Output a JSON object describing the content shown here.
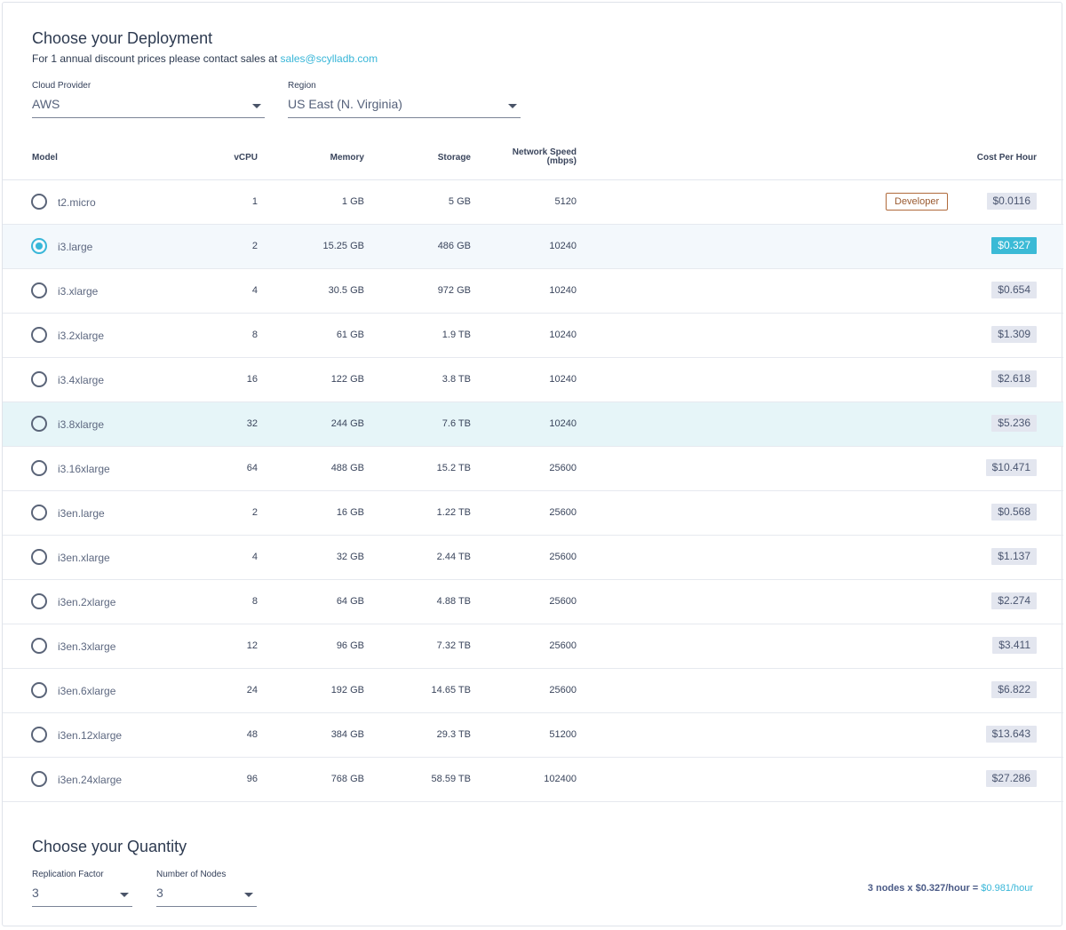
{
  "deployment": {
    "title": "Choose your Deployment",
    "subtitle": "For 1 annual discount prices please contact sales at",
    "sales_email": "sales@scylladb.com",
    "cloud_provider": {
      "label": "Cloud Provider",
      "value": "AWS"
    },
    "region": {
      "label": "Region",
      "value": "US East (N. Virginia)"
    }
  },
  "table": {
    "headers": {
      "model": "Model",
      "vcpu": "vCPU",
      "memory": "Memory",
      "storage": "Storage",
      "network_line1": "Network Speed",
      "network_line2": "(mbps)",
      "cost": "Cost Per Hour"
    },
    "rows": [
      {
        "model": "t2.micro",
        "vcpu": "1",
        "memory": "1 GB",
        "storage": "5 GB",
        "network": "5120",
        "price": "$0.0116",
        "badge": "Developer"
      },
      {
        "model": "i3.large",
        "vcpu": "2",
        "memory": "15.25 GB",
        "storage": "486 GB",
        "network": "10240",
        "price": "$0.327",
        "selected": true
      },
      {
        "model": "i3.xlarge",
        "vcpu": "4",
        "memory": "30.5 GB",
        "storage": "972 GB",
        "network": "10240",
        "price": "$0.654"
      },
      {
        "model": "i3.2xlarge",
        "vcpu": "8",
        "memory": "61 GB",
        "storage": "1.9 TB",
        "network": "10240",
        "price": "$1.309"
      },
      {
        "model": "i3.4xlarge",
        "vcpu": "16",
        "memory": "122 GB",
        "storage": "3.8 TB",
        "network": "10240",
        "price": "$2.618"
      },
      {
        "model": "i3.8xlarge",
        "vcpu": "32",
        "memory": "244 GB",
        "storage": "7.6 TB",
        "network": "10240",
        "price": "$5.236",
        "hover": true
      },
      {
        "model": "i3.16xlarge",
        "vcpu": "64",
        "memory": "488 GB",
        "storage": "15.2 TB",
        "network": "25600",
        "price": "$10.471"
      },
      {
        "model": "i3en.large",
        "vcpu": "2",
        "memory": "16 GB",
        "storage": "1.22 TB",
        "network": "25600",
        "price": "$0.568"
      },
      {
        "model": "i3en.xlarge",
        "vcpu": "4",
        "memory": "32 GB",
        "storage": "2.44 TB",
        "network": "25600",
        "price": "$1.137"
      },
      {
        "model": "i3en.2xlarge",
        "vcpu": "8",
        "memory": "64 GB",
        "storage": "4.88 TB",
        "network": "25600",
        "price": "$2.274"
      },
      {
        "model": "i3en.3xlarge",
        "vcpu": "12",
        "memory": "96 GB",
        "storage": "7.32 TB",
        "network": "25600",
        "price": "$3.411"
      },
      {
        "model": "i3en.6xlarge",
        "vcpu": "24",
        "memory": "192 GB",
        "storage": "14.65 TB",
        "network": "25600",
        "price": "$6.822"
      },
      {
        "model": "i3en.12xlarge",
        "vcpu": "48",
        "memory": "384 GB",
        "storage": "29.3 TB",
        "network": "51200",
        "price": "$13.643"
      },
      {
        "model": "i3en.24xlarge",
        "vcpu": "96",
        "memory": "768 GB",
        "storage": "58.59 TB",
        "network": "102400",
        "price": "$27.286"
      }
    ]
  },
  "quantity": {
    "title": "Choose your Quantity",
    "replication_factor": {
      "label": "Replication Factor",
      "value": "3"
    },
    "number_of_nodes": {
      "label": "Number of Nodes",
      "value": "3"
    },
    "total_calc": "3 nodes x $0.327/hour =",
    "total_value": "$0.981/hour"
  },
  "colors": {
    "accent": "#38b6d8",
    "badge_border": "#b06a3b",
    "price_bg": "#e3e6ef"
  }
}
